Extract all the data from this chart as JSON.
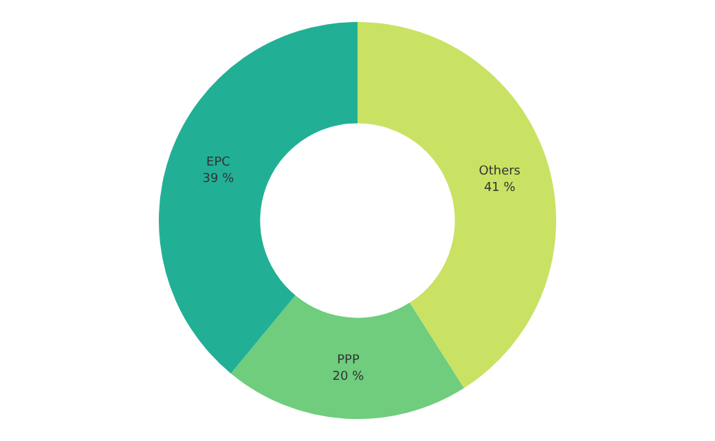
{
  "chart_data": {
    "type": "donut",
    "categories": [
      "Others",
      "PPP",
      "EPC"
    ],
    "values": [
      41,
      20,
      39
    ],
    "colors": [
      "#c9e264",
      "#6fcd7d",
      "#21b096"
    ],
    "value_labels": [
      "41 %",
      "20 %",
      "39 %"
    ],
    "legend": false
  }
}
